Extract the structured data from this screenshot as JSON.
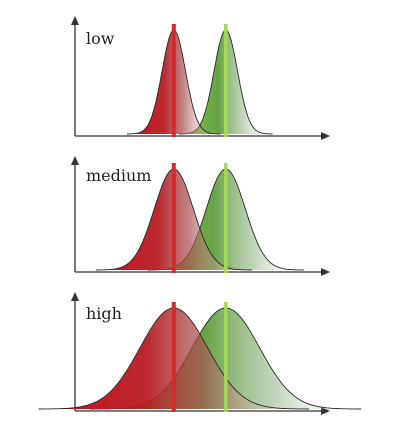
{
  "chart_data": [
    {
      "type": "area",
      "title": "low",
      "xlabel": "",
      "ylabel": "",
      "series": [
        {
          "color": "#c0101c",
          "mean": 0.38,
          "sd": 0.045
        },
        {
          "color": "#6aa84f",
          "mean": 0.58,
          "sd": 0.045
        }
      ],
      "markers": [
        {
          "x": 0.38,
          "color": "#d42a2a"
        },
        {
          "x": 0.58,
          "color": "#a6d858"
        }
      ],
      "xlim": [
        0,
        1
      ],
      "grid": false
    },
    {
      "type": "area",
      "title": "medium",
      "xlabel": "",
      "ylabel": "",
      "series": [
        {
          "color": "#c0101c",
          "mean": 0.38,
          "sd": 0.075
        },
        {
          "color": "#6aa84f",
          "mean": 0.58,
          "sd": 0.075
        }
      ],
      "markers": [
        {
          "x": 0.38,
          "color": "#d42a2a"
        },
        {
          "x": 0.58,
          "color": "#a6d858"
        }
      ],
      "xlim": [
        0,
        1
      ],
      "grid": false
    },
    {
      "type": "area",
      "title": "high",
      "xlabel": "",
      "ylabel": "",
      "series": [
        {
          "color": "#c0101c",
          "mean": 0.38,
          "sd": 0.13
        },
        {
          "color": "#6aa84f",
          "mean": 0.58,
          "sd": 0.13
        }
      ],
      "markers": [
        {
          "x": 0.38,
          "color": "#d42a2a"
        },
        {
          "x": 0.58,
          "color": "#a6d858"
        }
      ],
      "xlim": [
        0,
        1
      ],
      "grid": false
    }
  ]
}
